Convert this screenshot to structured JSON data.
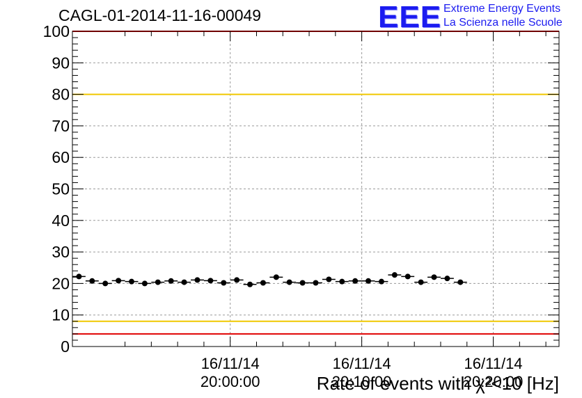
{
  "title": "CAGL-01-2014-11-16-00049",
  "logo": {
    "mark": "EEE",
    "line1": "Extreme Energy Events",
    "line2": "La Scienza nelle Scuole"
  },
  "chart_data": {
    "type": "scatter",
    "title": "CAGL-01-2014-11-16-00049",
    "xlabel": "Rate of events with χ²<10 [Hz]",
    "ylabel": "",
    "x_axis": "time",
    "xlim": [
      "16/11/14 19:48:00",
      "16/11/14 20:25:00"
    ],
    "ylim": [
      0,
      100
    ],
    "y_ticks": [
      "0",
      "10",
      "20",
      "30",
      "40",
      "50",
      "60",
      "70",
      "80",
      "90",
      "100"
    ],
    "x_ticks": [
      {
        "date": "16/11/14",
        "time": "20:00:00"
      },
      {
        "date": "16/11/14",
        "time": "20:10:00"
      },
      {
        "date": "16/11/14",
        "time": "20:20:00"
      }
    ],
    "grid": true,
    "reference_lines": [
      {
        "y": 80,
        "color": "#f0c800"
      },
      {
        "y": 8,
        "color": "#f0c800"
      },
      {
        "y": 4,
        "color": "#e00000"
      },
      {
        "y": 100,
        "color": "#e00000"
      }
    ],
    "series": [
      {
        "marker_color": "#000000",
        "points": [
          {
            "x": "16/11/14 19:48:30",
            "y": 22.2
          },
          {
            "x": "16/11/14 19:49:30",
            "y": 20.8
          },
          {
            "x": "16/11/14 19:50:30",
            "y": 20.0
          },
          {
            "x": "16/11/14 19:51:30",
            "y": 20.9
          },
          {
            "x": "16/11/14 19:52:30",
            "y": 20.6
          },
          {
            "x": "16/11/14 19:53:30",
            "y": 20.0
          },
          {
            "x": "16/11/14 19:54:30",
            "y": 20.4
          },
          {
            "x": "16/11/14 19:55:30",
            "y": 20.8
          },
          {
            "x": "16/11/14 19:56:30",
            "y": 20.4
          },
          {
            "x": "16/11/14 19:57:30",
            "y": 21.1
          },
          {
            "x": "16/11/14 19:58:30",
            "y": 20.9
          },
          {
            "x": "16/11/14 19:59:30",
            "y": 20.2
          },
          {
            "x": "16/11/14 20:00:30",
            "y": 21.1
          },
          {
            "x": "16/11/14 20:01:30",
            "y": 19.7
          },
          {
            "x": "16/11/14 20:02:30",
            "y": 20.2
          },
          {
            "x": "16/11/14 20:03:30",
            "y": 22.0
          },
          {
            "x": "16/11/14 20:04:30",
            "y": 20.4
          },
          {
            "x": "16/11/14 20:05:30",
            "y": 20.2
          },
          {
            "x": "16/11/14 20:06:30",
            "y": 20.2
          },
          {
            "x": "16/11/14 20:07:30",
            "y": 21.3
          },
          {
            "x": "16/11/14 20:08:30",
            "y": 20.6
          },
          {
            "x": "16/11/14 20:09:30",
            "y": 20.8
          },
          {
            "x": "16/11/14 20:10:30",
            "y": 20.8
          },
          {
            "x": "16/11/14 20:11:30",
            "y": 20.6
          },
          {
            "x": "16/11/14 20:12:30",
            "y": 22.7
          },
          {
            "x": "16/11/14 20:13:30",
            "y": 22.2
          },
          {
            "x": "16/11/14 20:14:30",
            "y": 20.4
          },
          {
            "x": "16/11/14 20:15:30",
            "y": 22.0
          },
          {
            "x": "16/11/14 20:16:30",
            "y": 21.6
          },
          {
            "x": "16/11/14 20:17:30",
            "y": 20.4
          }
        ]
      }
    ]
  }
}
